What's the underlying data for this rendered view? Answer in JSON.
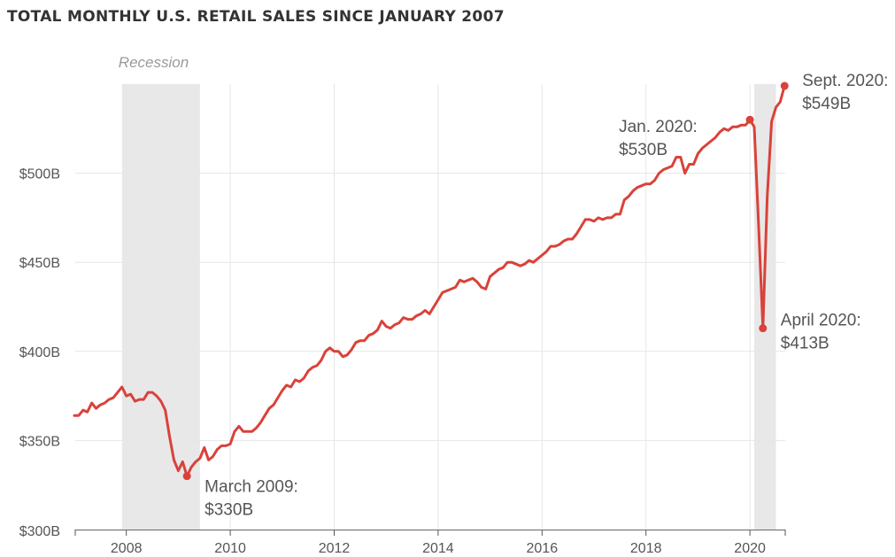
{
  "chart_data": {
    "type": "line",
    "title": "TOTAL MONTHLY U.S. RETAIL SALES SINCE JANUARY 2007",
    "xlabel": "",
    "ylabel": "",
    "x_ticks": [
      "2008",
      "2010",
      "2012",
      "2014",
      "2016",
      "2018",
      "2020"
    ],
    "y_ticks": [
      "$300B",
      "$350B",
      "$400B",
      "$450B",
      "$500B"
    ],
    "ylim": [
      300,
      550
    ],
    "grid": true,
    "line_color": "#d9423a",
    "shade_color": "#e8e8e8",
    "recessions": [
      {
        "start": "2007-12",
        "end": "2009-06",
        "label": "Recession"
      },
      {
        "start": "2020-02",
        "end": "2020-07",
        "label": ""
      }
    ],
    "series": [
      {
        "x": [
          "2007-01",
          "2007-02",
          "2007-03",
          "2007-04",
          "2007-05",
          "2007-06",
          "2007-07",
          "2007-08",
          "2007-09",
          "2007-10",
          "2007-11",
          "2007-12",
          "2008-01",
          "2008-02",
          "2008-03",
          "2008-04",
          "2008-05",
          "2008-06",
          "2008-07",
          "2008-08",
          "2008-09",
          "2008-10",
          "2008-11",
          "2008-12",
          "2009-01",
          "2009-02",
          "2009-03",
          "2009-04",
          "2009-05",
          "2009-06",
          "2009-07",
          "2009-08",
          "2009-09",
          "2009-10",
          "2009-11",
          "2009-12",
          "2010-01",
          "2010-02",
          "2010-03",
          "2010-04",
          "2010-05",
          "2010-06",
          "2010-07",
          "2010-08",
          "2010-09",
          "2010-10",
          "2010-11",
          "2010-12",
          "2011-01",
          "2011-02",
          "2011-03",
          "2011-04",
          "2011-05",
          "2011-06",
          "2011-07",
          "2011-08",
          "2011-09",
          "2011-10",
          "2011-11",
          "2011-12",
          "2012-01",
          "2012-02",
          "2012-03",
          "2012-04",
          "2012-05",
          "2012-06",
          "2012-07",
          "2012-08",
          "2012-09",
          "2012-10",
          "2012-11",
          "2012-12",
          "2013-01",
          "2013-02",
          "2013-03",
          "2013-04",
          "2013-05",
          "2013-06",
          "2013-07",
          "2013-08",
          "2013-09",
          "2013-10",
          "2013-11",
          "2013-12",
          "2014-01",
          "2014-02",
          "2014-03",
          "2014-04",
          "2014-05",
          "2014-06",
          "2014-07",
          "2014-08",
          "2014-09",
          "2014-10",
          "2014-11",
          "2014-12",
          "2015-01",
          "2015-02",
          "2015-03",
          "2015-04",
          "2015-05",
          "2015-06",
          "2015-07",
          "2015-08",
          "2015-09",
          "2015-10",
          "2015-11",
          "2015-12",
          "2016-01",
          "2016-02",
          "2016-03",
          "2016-04",
          "2016-05",
          "2016-06",
          "2016-07",
          "2016-08",
          "2016-09",
          "2016-10",
          "2016-11",
          "2016-12",
          "2017-01",
          "2017-02",
          "2017-03",
          "2017-04",
          "2017-05",
          "2017-06",
          "2017-07",
          "2017-08",
          "2017-09",
          "2017-10",
          "2017-11",
          "2017-12",
          "2018-01",
          "2018-02",
          "2018-03",
          "2018-04",
          "2018-05",
          "2018-06",
          "2018-07",
          "2018-08",
          "2018-09",
          "2018-10",
          "2018-11",
          "2018-12",
          "2019-01",
          "2019-02",
          "2019-03",
          "2019-04",
          "2019-05",
          "2019-06",
          "2019-07",
          "2019-08",
          "2019-09",
          "2019-10",
          "2019-11",
          "2019-12",
          "2020-01",
          "2020-02",
          "2020-03",
          "2020-04",
          "2020-05",
          "2020-06",
          "2020-07",
          "2020-08",
          "2020-09"
        ],
        "values": [
          364,
          364,
          367,
          366,
          371,
          368,
          370,
          371,
          373,
          374,
          377,
          380,
          375,
          376,
          372,
          373,
          373,
          377,
          377,
          375,
          372,
          367,
          352,
          339,
          333,
          338,
          330,
          335,
          338,
          340,
          346,
          339,
          341,
          345,
          347,
          347,
          348,
          355,
          358,
          355,
          355,
          355,
          357,
          360,
          364,
          368,
          370,
          374,
          378,
          381,
          380,
          384,
          383,
          385,
          389,
          391,
          392,
          395,
          400,
          402,
          400,
          400,
          397,
          398,
          401,
          405,
          406,
          406,
          409,
          410,
          412,
          417,
          414,
          413,
          415,
          416,
          419,
          418,
          418,
          420,
          421,
          423,
          421,
          425,
          429,
          433,
          434,
          435,
          436,
          440,
          439,
          440,
          441,
          439,
          436,
          435,
          442,
          444,
          446,
          447,
          450,
          450,
          449,
          448,
          449,
          451,
          450,
          452,
          454,
          456,
          459,
          459,
          460,
          462,
          463,
          463,
          466,
          470,
          474,
          474,
          473,
          475,
          474,
          475,
          475,
          477,
          477,
          485,
          487,
          490,
          492,
          493,
          494,
          494,
          496,
          500,
          502,
          503,
          504,
          509,
          509,
          500,
          505,
          505,
          511,
          514,
          516,
          518,
          520,
          523,
          525,
          524,
          526,
          526,
          527,
          527,
          530,
          526,
          471,
          413,
          487,
          529,
          537,
          540,
          549
        ]
      }
    ],
    "annotations": [
      {
        "date": "2009-03",
        "value": 330,
        "line1": "March 2009:",
        "line2": "$330B"
      },
      {
        "date": "2020-01",
        "value": 530,
        "line1": "Jan. 2020:",
        "line2": "$530B"
      },
      {
        "date": "2020-04",
        "value": 413,
        "line1": "April 2020:",
        "line2": "$413B"
      },
      {
        "date": "2020-09",
        "value": 549,
        "line1": "Sept. 2020:",
        "line2": "$549B"
      }
    ]
  }
}
